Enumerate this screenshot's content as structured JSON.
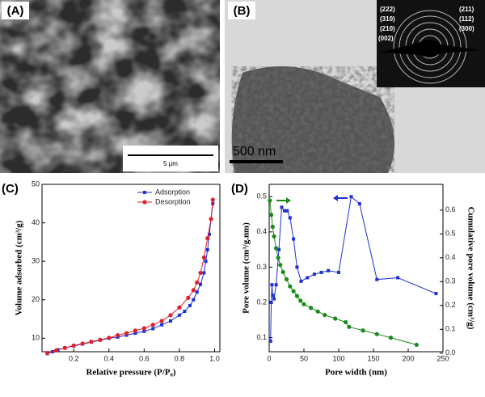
{
  "panels": [
    {
      "label": "(A)",
      "scale_bar": "5 μm"
    },
    {
      "label": "(B)",
      "scale_bar": "500  nm",
      "diffraction_labels": [
        "(222)",
        "(310)",
        "(210)",
        "(002)",
        "(211)",
        "(112)",
        "(300)"
      ]
    }
  ],
  "chart_data": [
    {
      "type": "line",
      "label": "(C)",
      "xlabel": "Relative pressure (P/P₀)",
      "ylabel": "Volume adsorbed (cm³/g)",
      "xlim": [
        0.02,
        1.03
      ],
      "xticks": [
        0.2,
        0.4,
        0.6,
        0.8,
        {
          "value": 1,
          "label": "1.0"
        }
      ],
      "ylim": [
        6.5,
        50
      ],
      "yticks": [
        10,
        20,
        30,
        40,
        50
      ],
      "legend": "upper center",
      "series": [
        {
          "name": "Adsorption",
          "color": "#1f2fd6",
          "marker": "square",
          "x": [
            0.05,
            0.08,
            0.11,
            0.15,
            0.2,
            0.25,
            0.3,
            0.35,
            0.4,
            0.45,
            0.5,
            0.55,
            0.6,
            0.65,
            0.7,
            0.75,
            0.8,
            0.83,
            0.86,
            0.88,
            0.9,
            0.92,
            0.94,
            0.95,
            0.96,
            0.97,
            0.98,
            0.99
          ],
          "values": [
            6,
            6.5,
            7,
            7.5,
            8,
            8.5,
            9,
            9.5,
            10,
            10.3,
            10.8,
            11.3,
            11.8,
            12.5,
            13.5,
            14.5,
            16,
            17,
            18.5,
            20,
            22,
            24,
            27,
            30,
            33,
            37,
            41,
            45
          ]
        },
        {
          "name": "Desorption",
          "color": "#e0202a",
          "marker": "circle",
          "x": [
            0.05,
            0.1,
            0.15,
            0.2,
            0.25,
            0.3,
            0.35,
            0.4,
            0.45,
            0.5,
            0.55,
            0.6,
            0.65,
            0.7,
            0.75,
            0.8,
            0.85,
            0.88,
            0.9,
            0.92,
            0.94,
            0.96,
            0.98,
            0.99
          ],
          "values": [
            6.2,
            6.8,
            7.5,
            8.1,
            8.6,
            9.1,
            9.6,
            10.1,
            10.8,
            11.3,
            12,
            12.6,
            13.5,
            14.5,
            16,
            18,
            20.5,
            22.5,
            24.5,
            27,
            31,
            36,
            41,
            46
          ]
        }
      ]
    },
    {
      "type": "line",
      "label": "(D)",
      "xlabel": "Pore width (nm)",
      "ylabel": "Pore volume (cm³/g.nm)",
      "y2label": "Cumulative pore volume (cm³/g)",
      "xlim": [
        0,
        250
      ],
      "xticks": [
        0,
        50,
        100,
        150,
        200,
        250
      ],
      "ylim": [
        0.06,
        0.535
      ],
      "yticks": [
        0.1,
        0.2,
        0.3,
        0.4,
        0.5
      ],
      "y2lim": [
        0.006,
        0.708
      ],
      "y2ticks": [
        {
          "value": 0,
          "label": "0.0"
        },
        0.1,
        0.2,
        0.3,
        0.4,
        0.5,
        0.6
      ],
      "series": [
        {
          "name": "Pore volume",
          "color": "#1f2fd6",
          "marker": "square",
          "x": [
            2,
            3,
            4,
            5,
            7,
            10,
            14,
            18,
            22,
            26,
            30,
            35,
            40,
            46,
            55,
            65,
            75,
            85,
            100,
            118,
            130,
            155,
            185,
            240
          ],
          "values": [
            0.09,
            0.2,
            0.25,
            0.22,
            0.21,
            0.25,
            0.35,
            0.47,
            0.46,
            0.46,
            0.44,
            0.38,
            0.3,
            0.26,
            0.27,
            0.28,
            0.285,
            0.29,
            0.285,
            0.5,
            0.48,
            0.265,
            0.27,
            0.225
          ]
        },
        {
          "name": "Cumulative pore volume",
          "color": "#1a8a1a",
          "marker": "circle",
          "axis": "y2",
          "x": [
            1,
            3,
            5,
            7,
            10,
            13,
            16,
            20,
            25,
            30,
            35,
            40,
            45,
            50,
            60,
            70,
            80,
            95,
            110,
            115,
            135,
            155,
            175,
            212
          ],
          "values": [
            0.64,
            0.58,
            0.53,
            0.49,
            0.44,
            0.4,
            0.37,
            0.34,
            0.31,
            0.28,
            0.26,
            0.24,
            0.22,
            0.205,
            0.19,
            0.175,
            0.16,
            0.145,
            0.13,
            0.11,
            0.095,
            0.08,
            0.065,
            0.035
          ]
        }
      ]
    }
  ]
}
